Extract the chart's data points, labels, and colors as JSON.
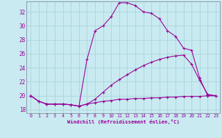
{
  "xlabel": "Windchill (Refroidissement éolien,°C)",
  "bg_color": "#c8eaf0",
  "line_color": "#990099",
  "grid_color": "#aad4dc",
  "xlim": [
    -0.5,
    23.5
  ],
  "ylim": [
    17.5,
    33.5
  ],
  "xticks": [
    0,
    1,
    2,
    3,
    4,
    5,
    6,
    7,
    8,
    9,
    10,
    11,
    12,
    13,
    14,
    15,
    16,
    17,
    18,
    19,
    20,
    21,
    22,
    23
  ],
  "yticks": [
    18,
    20,
    22,
    24,
    26,
    28,
    30,
    32
  ],
  "line1_x": [
    0,
    1,
    2,
    3,
    4,
    5,
    6,
    7,
    8,
    9,
    10,
    11,
    12,
    13,
    14,
    15,
    16,
    17,
    18,
    19,
    20,
    21,
    22,
    23
  ],
  "line1_y": [
    20.0,
    19.2,
    18.8,
    18.8,
    18.8,
    18.7,
    18.5,
    25.2,
    29.3,
    30.0,
    31.3,
    33.3,
    33.3,
    32.9,
    32.0,
    31.8,
    31.0,
    29.3,
    28.5,
    26.8,
    26.5,
    22.5,
    20.0,
    20.0
  ],
  "line2_x": [
    0,
    1,
    2,
    3,
    4,
    5,
    6,
    7,
    8,
    9,
    10,
    11,
    12,
    13,
    14,
    15,
    16,
    17,
    18,
    19,
    20,
    21,
    22,
    23
  ],
  "line2_y": [
    20.0,
    19.2,
    18.8,
    18.8,
    18.8,
    18.7,
    18.5,
    18.8,
    19.5,
    20.5,
    21.5,
    22.3,
    23.0,
    23.7,
    24.3,
    24.8,
    25.2,
    25.5,
    25.7,
    25.8,
    24.5,
    22.2,
    20.2,
    20.0
  ],
  "line3_x": [
    0,
    1,
    2,
    3,
    4,
    5,
    6,
    7,
    8,
    9,
    10,
    11,
    12,
    13,
    14,
    15,
    16,
    17,
    18,
    19,
    20,
    21,
    22,
    23
  ],
  "line3_y": [
    20.0,
    19.2,
    18.8,
    18.8,
    18.8,
    18.7,
    18.5,
    18.8,
    19.0,
    19.2,
    19.3,
    19.5,
    19.5,
    19.6,
    19.6,
    19.7,
    19.7,
    19.8,
    19.8,
    19.9,
    19.9,
    19.9,
    20.0,
    20.0
  ]
}
